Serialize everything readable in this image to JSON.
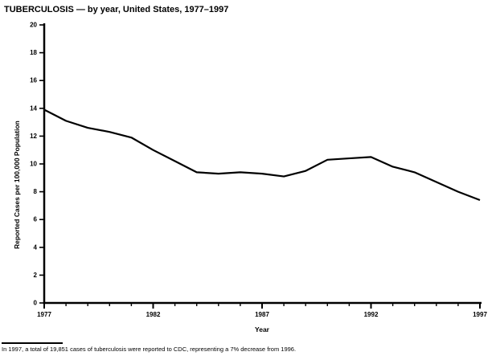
{
  "page": {
    "background": "#ffffff",
    "text_color": "#000000"
  },
  "chart_data": {
    "type": "line",
    "title": "TUBERCULOSIS — by year, United States, 1977–1997",
    "xlabel": "Year",
    "ylabel": "Reported Cases per 100,000 Population",
    "x": [
      1977,
      1978,
      1979,
      1980,
      1981,
      1982,
      1983,
      1984,
      1985,
      1986,
      1987,
      1988,
      1989,
      1990,
      1991,
      1992,
      1993,
      1994,
      1995,
      1996,
      1997
    ],
    "values": [
      13.9,
      13.1,
      12.6,
      12.3,
      11.9,
      11.0,
      10.2,
      9.4,
      9.3,
      9.4,
      9.3,
      9.1,
      9.5,
      10.3,
      10.4,
      10.5,
      9.8,
      9.4,
      8.7,
      8.0,
      7.4
    ],
    "ylim": [
      0,
      20
    ],
    "ytick_step": 2,
    "xticks_major": [
      1977,
      1982,
      1987,
      1992,
      1997
    ],
    "grid": "off",
    "legend": "none",
    "line_color": "#000000",
    "footnote": "In 1997, a total of 19,851 cases of tuberculosis were reported to CDC, representing a 7% decrease from 1996."
  }
}
